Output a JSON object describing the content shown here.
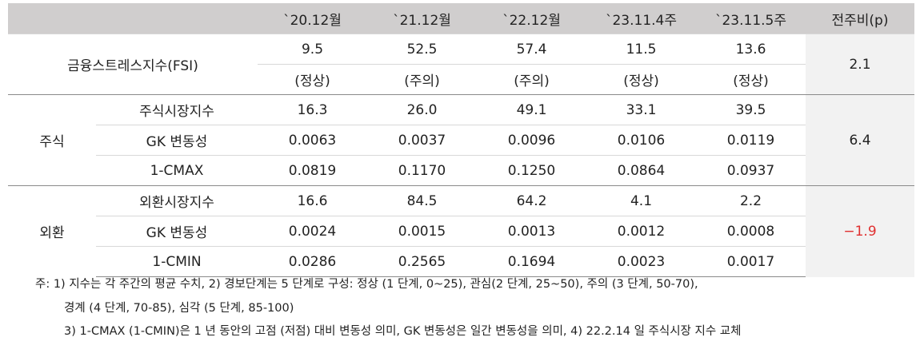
{
  "header": {
    "columns": [
      "`20.12월",
      "`21.12월",
      "`22.12월",
      "`23.11.4주",
      "`23.11.5주",
      "전주비(p)"
    ]
  },
  "fsi": {
    "label": "금융스트레스지수(FSI)",
    "values": [
      "9.5",
      "52.5",
      "57.4",
      "11.5",
      "13.6"
    ],
    "statuses": [
      "(정상)",
      "(주의)",
      "(주의)",
      "(정상)",
      "(정상)"
    ],
    "change": "2.1"
  },
  "groups": [
    {
      "label": "주식",
      "change": "6.4",
      "rows": [
        {
          "label": "주식시장지수",
          "values": [
            "16.3",
            "26.0",
            "49.1",
            "33.1",
            "39.5"
          ]
        },
        {
          "label": "GK 변동성",
          "values": [
            "0.0063",
            "0.0037",
            "0.0096",
            "0.0106",
            "0.0119"
          ]
        },
        {
          "label": "1-CMAX",
          "values": [
            "0.0819",
            "0.1170",
            "0.1250",
            "0.0864",
            "0.0937"
          ]
        }
      ]
    },
    {
      "label": "외환",
      "change": "−1.9",
      "rows": [
        {
          "label": "외환시장지수",
          "values": [
            "16.6",
            "84.5",
            "64.2",
            "4.1",
            "2.2"
          ]
        },
        {
          "label": "GK 변동성",
          "values": [
            "0.0024",
            "0.0015",
            "0.0013",
            "0.0012",
            "0.0008"
          ]
        },
        {
          "label": "1-CMIN",
          "values": [
            "0.0286",
            "0.2565",
            "0.1694",
            "0.0023",
            "0.0017"
          ]
        }
      ]
    }
  ],
  "notes": [
    "주: 1) 지수는 각 주간의 평균 수치, 2) 경보단계는 5 단계로 구성: 정상 (1 단계, 0~25), 관심(2 단계, 25~50), 주의 (3 단계, 50-70),",
    "경계 (4 단계, 70-85), 심각 (5 단계, 85-100)",
    "3) 1-CMAX (1-CMIN)은 1 년 동안의 고점 (저점) 대비 변동성 의미, GK 변동성은 일간 변동성을 의미, 4) 22.2.14 일 주식시장 지수 교체"
  ]
}
